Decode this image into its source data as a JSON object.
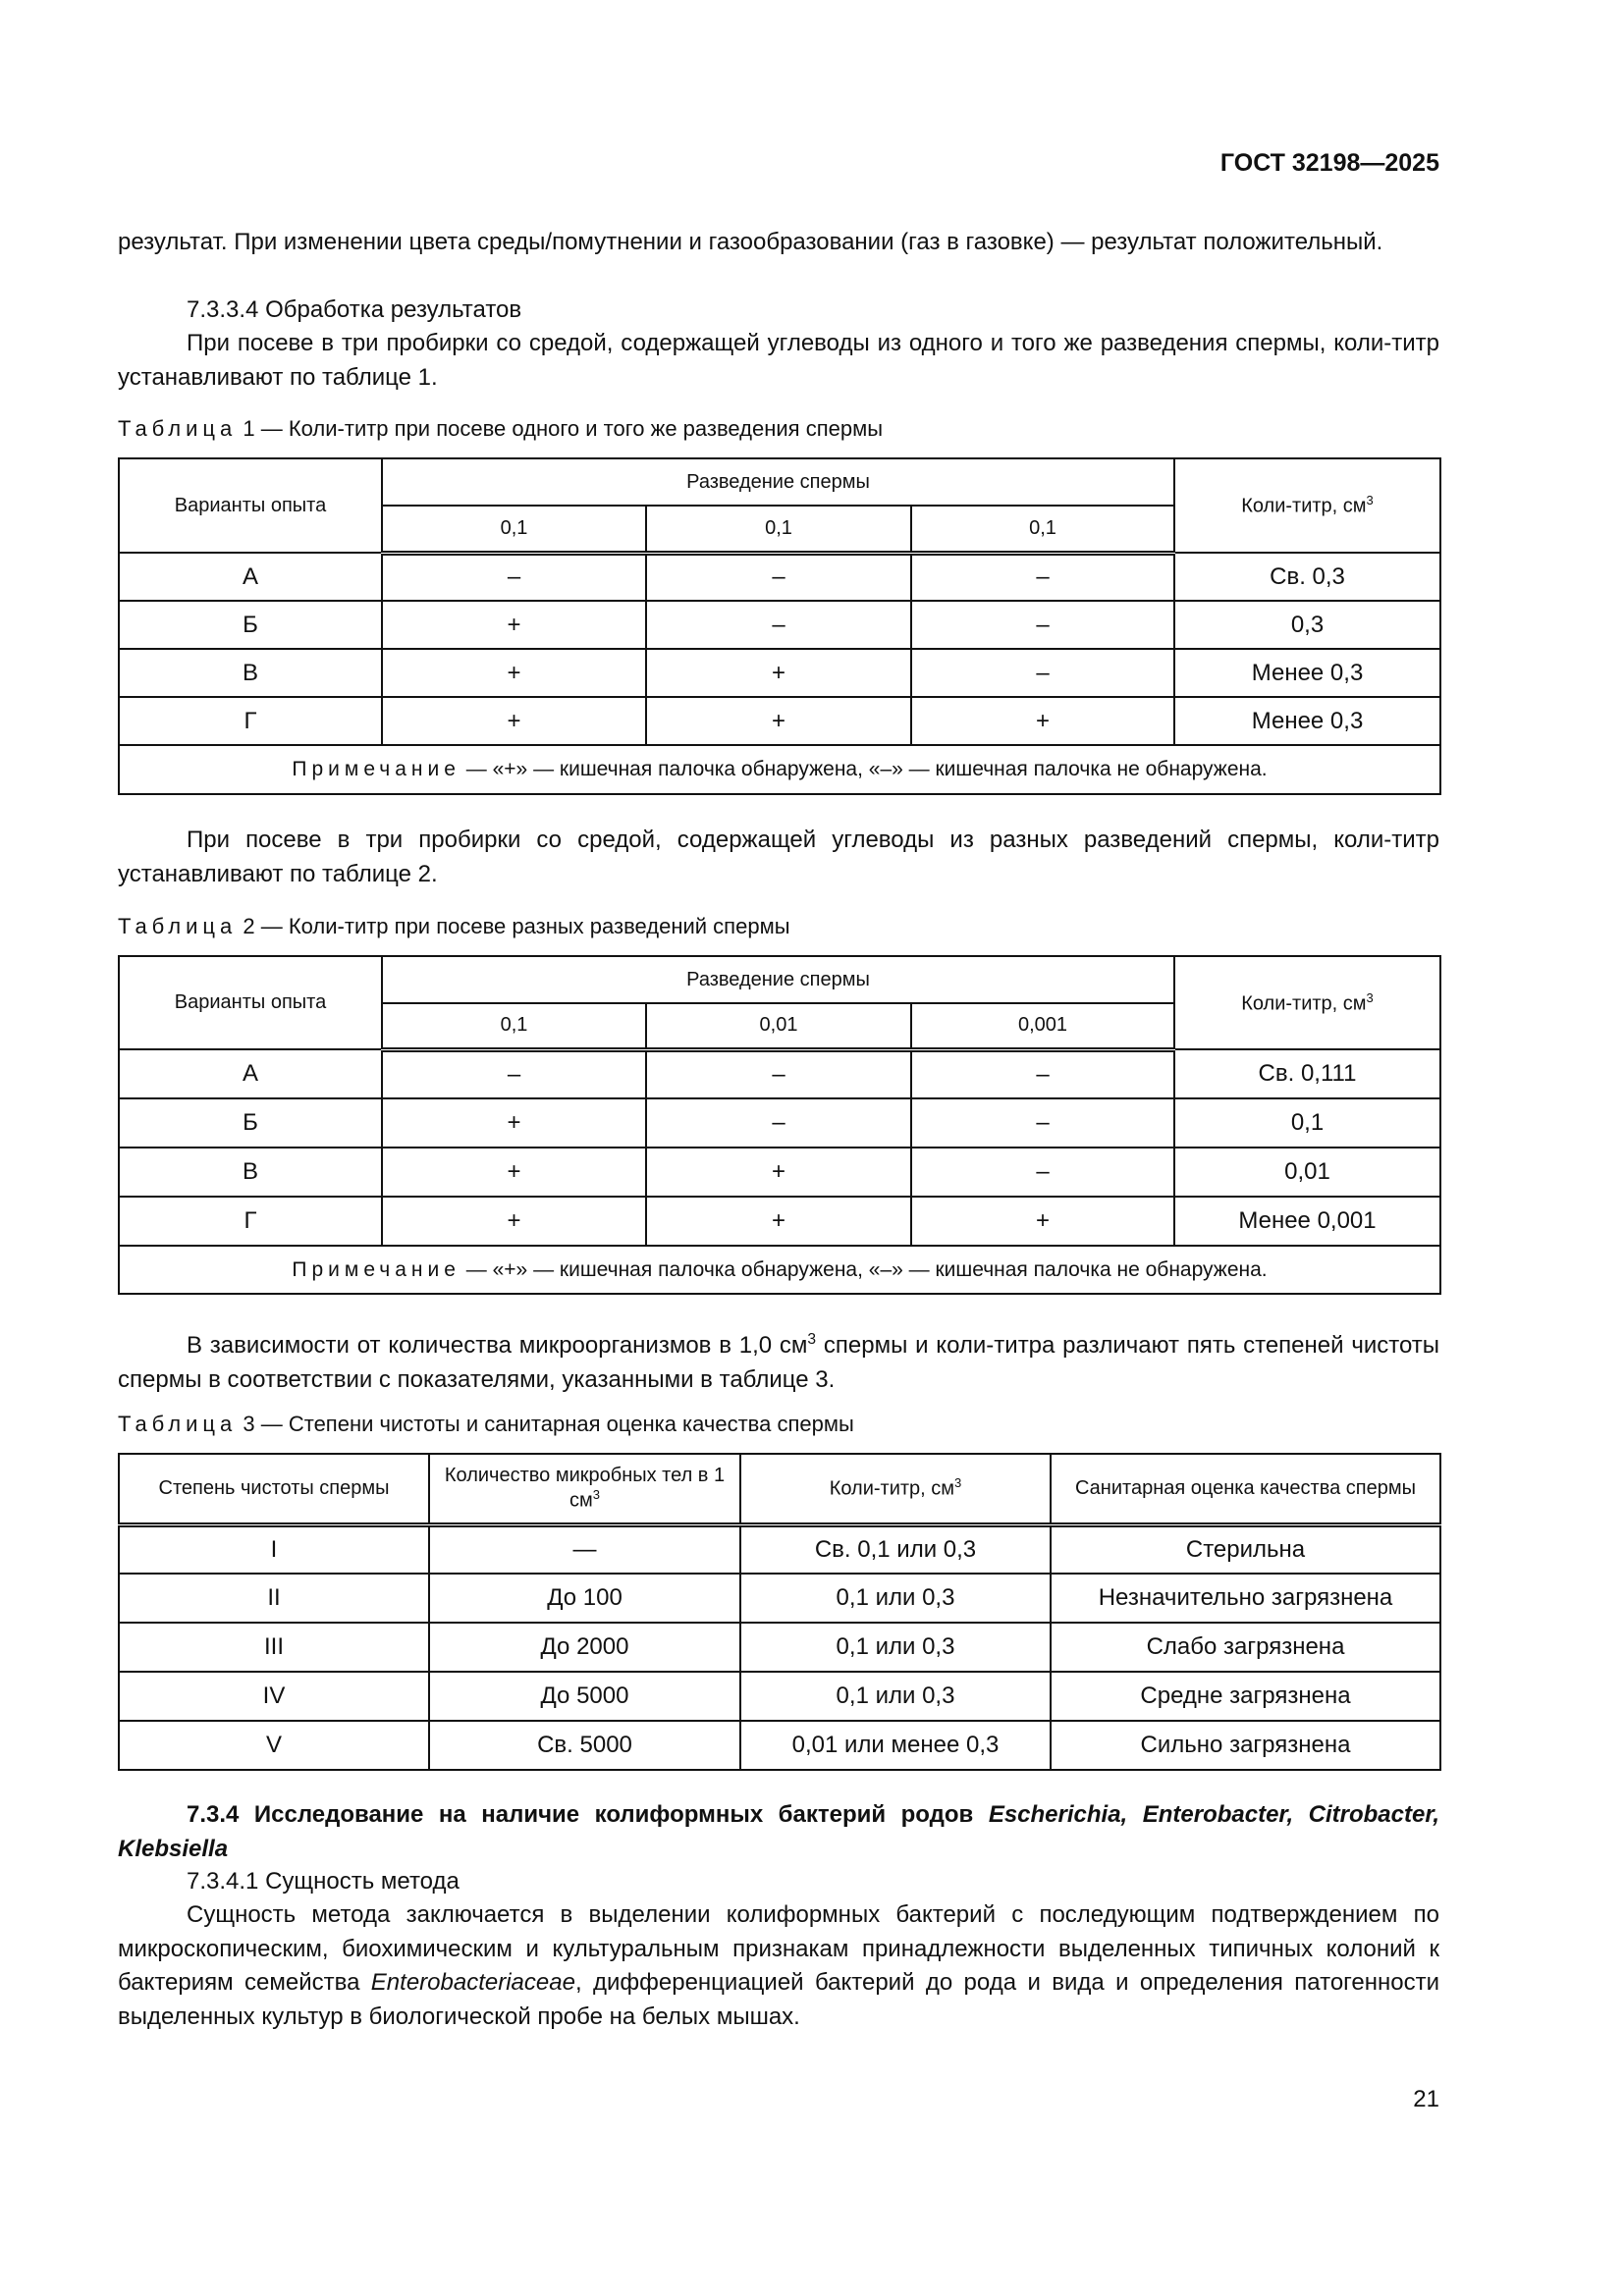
{
  "header": {
    "doc_id": "ГОСТ 32198—2025"
  },
  "para1": "результат. При изменении цвета среды/помутнении и газообразовании (газ в газовке) — результат положительный.",
  "sec_7334": "7.3.3.4 Обработка результатов",
  "para2": "При посеве в три пробирки со средой, содержащей углеводы из одного и того же разведения спермы, коли-титр устанавливают по таблице 1.",
  "table1": {
    "caption_label": "Таблица",
    "caption": "1 — Коли-титр при посеве одного и того же разведения спермы",
    "col_variant": "Варианты опыта",
    "col_dilution": "Разведение спермы",
    "col_titer": "Коли-титр, см",
    "dilutions": [
      "0,1",
      "0,1",
      "0,1"
    ],
    "rows": [
      [
        "А",
        "–",
        "–",
        "–",
        "Св. 0,3"
      ],
      [
        "Б",
        "+",
        "–",
        "–",
        "0,3"
      ],
      [
        "В",
        "+",
        "+",
        "–",
        "Менее 0,3"
      ],
      [
        "Г",
        "+",
        "+",
        "+",
        "Менее 0,3"
      ]
    ],
    "note_label": "Примечание",
    "note": " — «+» — кишечная палочка обнаружена, «–» — кишечная палочка не обнаружена."
  },
  "para3": "При посеве в три пробирки со средой, содержащей углеводы из разных разведений спермы, коли-титр устанавливают по таблице 2.",
  "table2": {
    "caption_label": "Таблица",
    "caption": "2 — Коли-титр при посеве разных разведений спермы",
    "col_variant": "Варианты опыта",
    "col_dilution": "Разведение спермы",
    "col_titer": "Коли-титр, см",
    "dilutions": [
      "0,1",
      "0,01",
      "0,001"
    ],
    "rows": [
      [
        "А",
        "–",
        "–",
        "–",
        "Св. 0,111"
      ],
      [
        "Б",
        "+",
        "–",
        "–",
        "0,1"
      ],
      [
        "В",
        "+",
        "+",
        "–",
        "0,01"
      ],
      [
        "Г",
        "+",
        "+",
        "+",
        "Менее 0,001"
      ]
    ],
    "note_label": "Примечание",
    "note": " — «+» — кишечная палочка обнаружена, «–» — кишечная палочка не обнаружена."
  },
  "para4": {
    "a": "В зависимости от количества микроорганизмов в 1,0 см",
    "b": " спермы и коли-титра различают пять степеней чистоты спермы в соответствии с показателями, указанными в таблице 3."
  },
  "table3": {
    "caption_label": "Таблица",
    "caption": "3 — Степени чистоты и санитарная оценка качества спермы",
    "headers": [
      "Степень чистоты спермы",
      "Количество микробных тел в 1 см",
      "Коли-титр, см",
      "Санитарная оценка качества спермы"
    ],
    "rows": [
      [
        "I",
        "—",
        "Св. 0,1 или 0,3",
        "Стерильна"
      ],
      [
        "II",
        "До 100",
        "0,1 или 0,3",
        "Незначительно загрязнена"
      ],
      [
        "III",
        "До 2000",
        "0,1 или 0,3",
        "Слабо загрязнена"
      ],
      [
        "IV",
        "До 5000",
        "0,1 или 0,3",
        "Средне загрязнена"
      ],
      [
        "V",
        "Св. 5000",
        "0,01 или менее 0,3",
        "Сильно загрязнена"
      ]
    ]
  },
  "sec_734": {
    "a": "7.3.4 Исследование на наличие колиформных бактерий родов ",
    "b": "Escherichia, Enterobacter, Citrobacter, Klebsiella"
  },
  "sec_7341": "7.3.4.1 Сущность метода",
  "para5": {
    "a": "Сущность метода заключается в выделении колиформных бактерий с последующим подтверждением по микроскопическим, биохимическим и культуральным признакам принадлежности выделенных типичных колоний к бактериям семейства ",
    "b": "Enterobacteriaceae",
    "c": ", дифференциацией бактерий до рода и вида и определения патогенности выделенных культур в биологической пробе на белых мышах."
  },
  "sup3": "3",
  "page_number": "21"
}
